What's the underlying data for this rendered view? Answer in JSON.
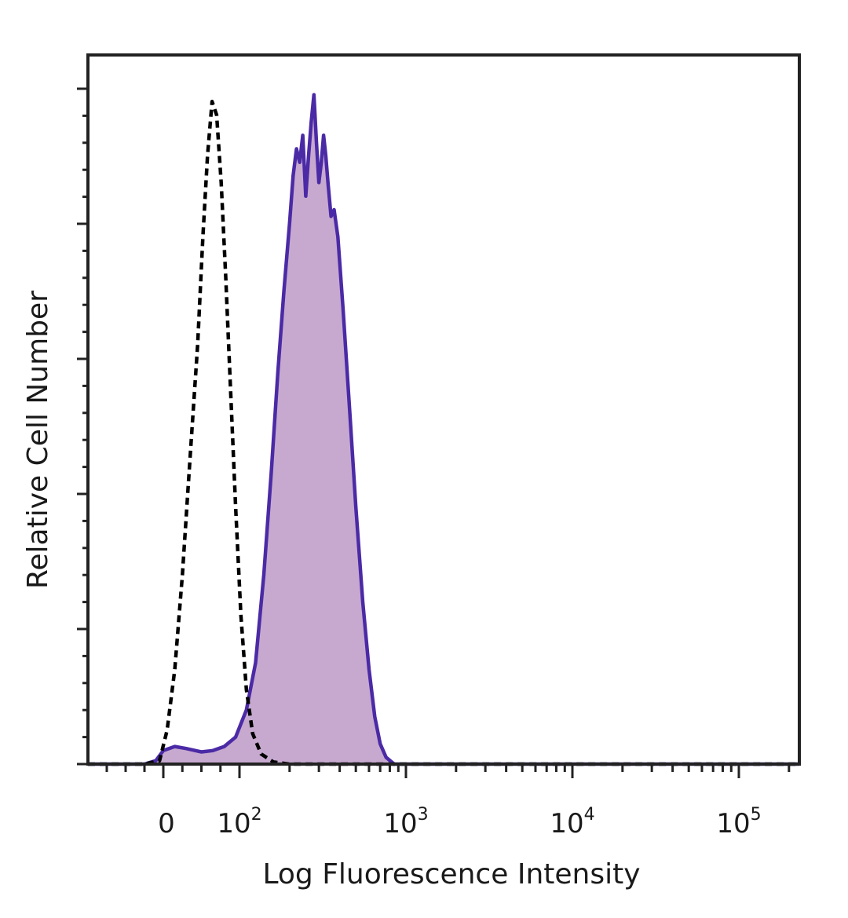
{
  "chart_data": {
    "type": "area",
    "xlabel": "Log Fluorescence Intensity",
    "ylabel": "Relative Cell Number",
    "x_scale": "biexponential",
    "x_ticks": [
      {
        "value": 0,
        "base": "0",
        "exp": ""
      },
      {
        "value": 100,
        "base": "10",
        "exp": "2"
      },
      {
        "value": 1000,
        "base": "10",
        "exp": "3"
      },
      {
        "value": 10000,
        "base": "10",
        "exp": "4"
      },
      {
        "value": 100000,
        "base": "10",
        "exp": "5"
      }
    ],
    "xlim": [
      -200,
      250000
    ],
    "ylim": [
      0,
      100
    ],
    "grid": false,
    "legend": "none",
    "series": [
      {
        "style": "filled",
        "fill_color": "#c7a9cf",
        "line_color": "#4b2aa6",
        "points": [
          [
            -200,
            0
          ],
          [
            -50,
            0
          ],
          [
            -20,
            0.5
          ],
          [
            0,
            2
          ],
          [
            15,
            2.6
          ],
          [
            30,
            2.3
          ],
          [
            50,
            1.8
          ],
          [
            65,
            2.0
          ],
          [
            80,
            2.6
          ],
          [
            95,
            4.0
          ],
          [
            110,
            8
          ],
          [
            125,
            15
          ],
          [
            140,
            28
          ],
          [
            155,
            43
          ],
          [
            170,
            58
          ],
          [
            185,
            70
          ],
          [
            200,
            80
          ],
          [
            210,
            87
          ],
          [
            220,
            91
          ],
          [
            230,
            89
          ],
          [
            240,
            93
          ],
          [
            250,
            84
          ],
          [
            260,
            90
          ],
          [
            270,
            95
          ],
          [
            280,
            99
          ],
          [
            290,
            92
          ],
          [
            300,
            86
          ],
          [
            310,
            89
          ],
          [
            320,
            93
          ],
          [
            330,
            90
          ],
          [
            340,
            86
          ],
          [
            355,
            81
          ],
          [
            370,
            82
          ],
          [
            390,
            78
          ],
          [
            420,
            67
          ],
          [
            460,
            52
          ],
          [
            500,
            38
          ],
          [
            550,
            24
          ],
          [
            600,
            14
          ],
          [
            650,
            7
          ],
          [
            700,
            3
          ],
          [
            760,
            1
          ],
          [
            850,
            0
          ],
          [
            1000,
            0
          ],
          [
            250000,
            0
          ]
        ]
      },
      {
        "style": "dashed",
        "line_color": "#000000",
        "points": [
          [
            -200,
            0
          ],
          [
            -50,
            0
          ],
          [
            -10,
            0.5
          ],
          [
            5,
            5
          ],
          [
            15,
            14
          ],
          [
            25,
            28
          ],
          [
            35,
            45
          ],
          [
            45,
            62
          ],
          [
            52,
            78
          ],
          [
            58,
            90
          ],
          [
            64,
            98
          ],
          [
            70,
            96
          ],
          [
            76,
            86
          ],
          [
            82,
            72
          ],
          [
            88,
            56
          ],
          [
            95,
            38
          ],
          [
            102,
            22
          ],
          [
            110,
            11
          ],
          [
            120,
            4.5
          ],
          [
            135,
            1.5
          ],
          [
            160,
            0.3
          ],
          [
            200,
            0
          ],
          [
            250000,
            0
          ]
        ]
      }
    ]
  }
}
